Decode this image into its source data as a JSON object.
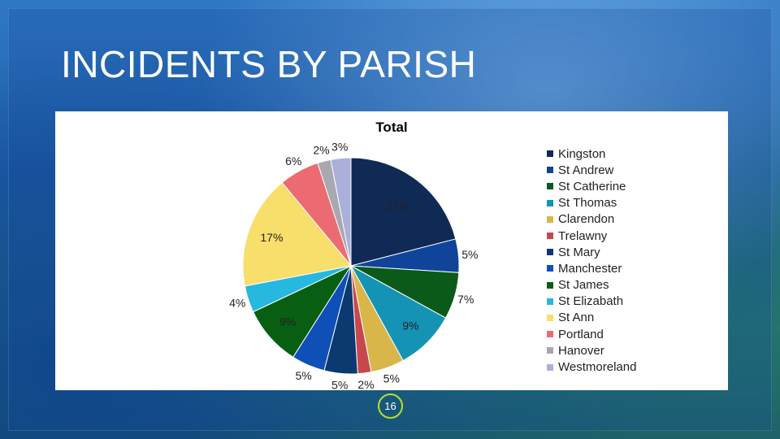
{
  "slide": {
    "title": "INCIDENTS BY PARISH",
    "page_number": "16"
  },
  "chart_data": {
    "type": "pie",
    "title": "Total",
    "legend_position": "right",
    "slices": [
      {
        "label": "Kingston",
        "value": 21,
        "display": "21%",
        "color": "#0f2a55"
      },
      {
        "label": "St Andrew",
        "value": 5,
        "display": "5%",
        "color": "#10449a"
      },
      {
        "label": "St Catherine",
        "value": 7,
        "display": "7%",
        "color": "#0b5a1a"
      },
      {
        "label": "St Thomas",
        "value": 9,
        "display": "9%",
        "color": "#1593b5"
      },
      {
        "label": "Clarendon",
        "value": 5,
        "display": "5%",
        "color": "#d9b64a"
      },
      {
        "label": "Trelawny",
        "value": 2,
        "display": "2%",
        "color": "#c8474e"
      },
      {
        "label": "St Mary",
        "value": 5,
        "display": "5%",
        "color": "#0a3a70"
      },
      {
        "label": "Manchester",
        "value": 5,
        "display": "5%",
        "color": "#0e4fb8"
      },
      {
        "label": "St James",
        "value": 9,
        "display": "9%",
        "color": "#085f12"
      },
      {
        "label": "St Elizabath",
        "value": 4,
        "display": "4%",
        "color": "#26b8df"
      },
      {
        "label": "St Ann",
        "value": 17,
        "display": "17%",
        "color": "#f8de6a"
      },
      {
        "label": "Portland",
        "value": 6,
        "display": "6%",
        "color": "#ec6b73"
      },
      {
        "label": "Hanover",
        "value": 2,
        "display": "2%",
        "color": "#a8a8ae"
      },
      {
        "label": "Westmoreland",
        "value": 3,
        "display": "3%",
        "color": "#aab0da"
      }
    ]
  }
}
